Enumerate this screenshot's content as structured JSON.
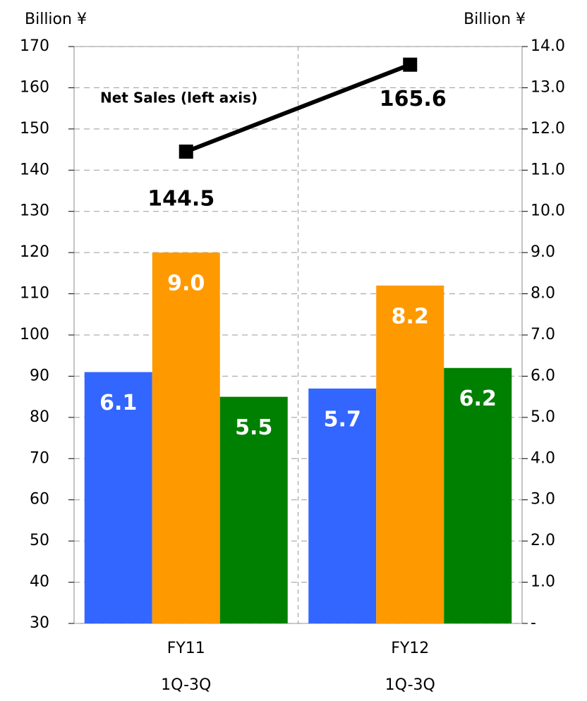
{
  "chart_data": {
    "type": "combo",
    "ylabel": "Billion ¥",
    "y2label": "Billion ¥",
    "categories": [
      [
        "FY11",
        "1Q-3Q"
      ],
      [
        "FY12",
        "1Q-3Q"
      ]
    ],
    "ylim": [
      30,
      170
    ],
    "yticks": [
      30,
      40,
      50,
      60,
      70,
      80,
      90,
      100,
      110,
      120,
      130,
      140,
      150,
      160,
      170
    ],
    "y2lim": [
      0,
      14
    ],
    "y2ticks": [
      {
        "value": 0,
        "label": "-"
      },
      {
        "value": 1,
        "label": "1.0"
      },
      {
        "value": 2,
        "label": "2.0"
      },
      {
        "value": 3,
        "label": "3.0"
      },
      {
        "value": 4,
        "label": "4.0"
      },
      {
        "value": 5,
        "label": "5.0"
      },
      {
        "value": 6,
        "label": "6.0"
      },
      {
        "value": 7,
        "label": "7.0"
      },
      {
        "value": 8,
        "label": "8.0"
      },
      {
        "value": 9,
        "label": "9.0"
      },
      {
        "value": 10,
        "label": "10.0"
      },
      {
        "value": 11,
        "label": "11.0"
      },
      {
        "value": 12,
        "label": "12.0"
      },
      {
        "value": 13,
        "label": "13.0"
      },
      {
        "value": 14,
        "label": "14.0"
      }
    ],
    "grid": true,
    "series": [
      {
        "type": "bar",
        "axis": "y2",
        "color": "#3366ff",
        "values": [
          6.1,
          5.7
        ],
        "value_labels": [
          "6.1",
          "5.7"
        ]
      },
      {
        "type": "bar",
        "axis": "y2",
        "color": "#ff9900",
        "values": [
          9.0,
          8.2
        ],
        "value_labels": [
          "9.0",
          "8.2"
        ]
      },
      {
        "type": "bar",
        "axis": "y2",
        "color": "#008000",
        "values": [
          5.5,
          6.2
        ],
        "value_labels": [
          "5.5",
          "6.2"
        ]
      },
      {
        "type": "line",
        "axis": "y",
        "name": "Net Sales (left axis)",
        "color": "#000000",
        "values": [
          144.5,
          165.6
        ]
      }
    ]
  }
}
